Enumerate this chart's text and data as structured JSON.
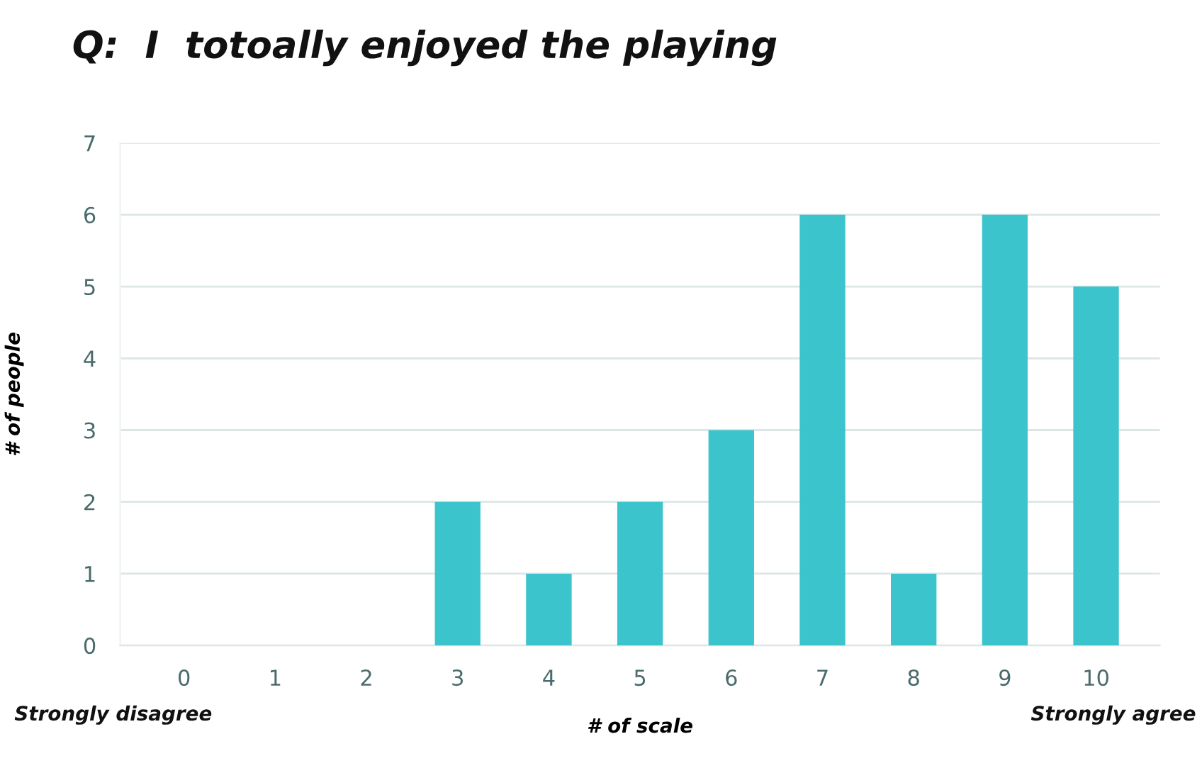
{
  "chart_data": {
    "type": "bar",
    "title": "Q:  I  totoally enjoyed the playing",
    "xlabel": "# of scale",
    "ylabel": "# of people",
    "categories": [
      "0",
      "1",
      "2",
      "3",
      "4",
      "5",
      "6",
      "7",
      "8",
      "9",
      "10"
    ],
    "values": [
      0,
      0,
      0,
      2,
      1,
      2,
      3,
      6,
      1,
      6,
      5
    ],
    "color": "#3cc4cc",
    "ylim": [
      0,
      7
    ],
    "yticks": [
      0,
      1,
      2,
      3,
      4,
      5,
      6,
      7
    ],
    "grid": "y",
    "annotations": [
      "Strongly disagree",
      "Strongly agree"
    ]
  }
}
